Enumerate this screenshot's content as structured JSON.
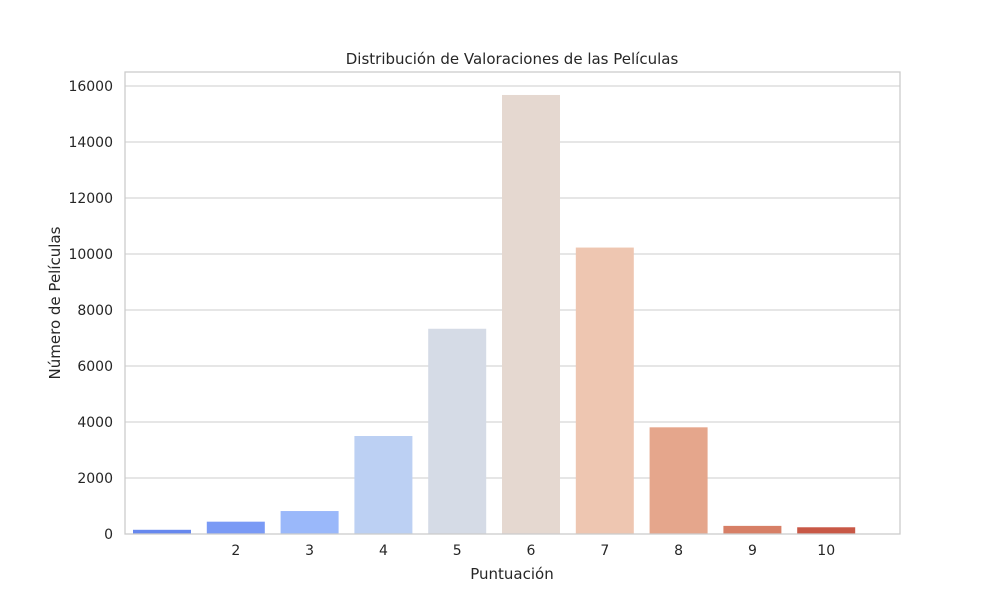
{
  "chart_data": {
    "type": "bar",
    "title": "Distribución de Valoraciones de las Películas",
    "xlabel": "Puntuación",
    "ylabel": "Número de Películas",
    "categories": [
      "",
      "2",
      "3",
      "4",
      "5",
      "6",
      "7",
      "8",
      "9",
      "10"
    ],
    "values": [
      150,
      440,
      820,
      3500,
      7330,
      15680,
      10230,
      3810,
      290,
      240
    ],
    "colors": [
      "#6788ee",
      "#7a9af5",
      "#9ab8fa",
      "#bcd0f3",
      "#d5dbe6",
      "#e5d8d0",
      "#eec6b1",
      "#e5a68c",
      "#d77f66",
      "#c85846"
    ],
    "ylim": [
      0,
      16500
    ],
    "yticks": [
      0,
      2000,
      4000,
      6000,
      8000,
      10000,
      12000,
      14000,
      16000
    ],
    "ytick_labels": [
      "0",
      "2000",
      "4000",
      "6000",
      "8000",
      "10000",
      "12000",
      "14000",
      "16000"
    ],
    "grid": true,
    "legend": "none"
  }
}
